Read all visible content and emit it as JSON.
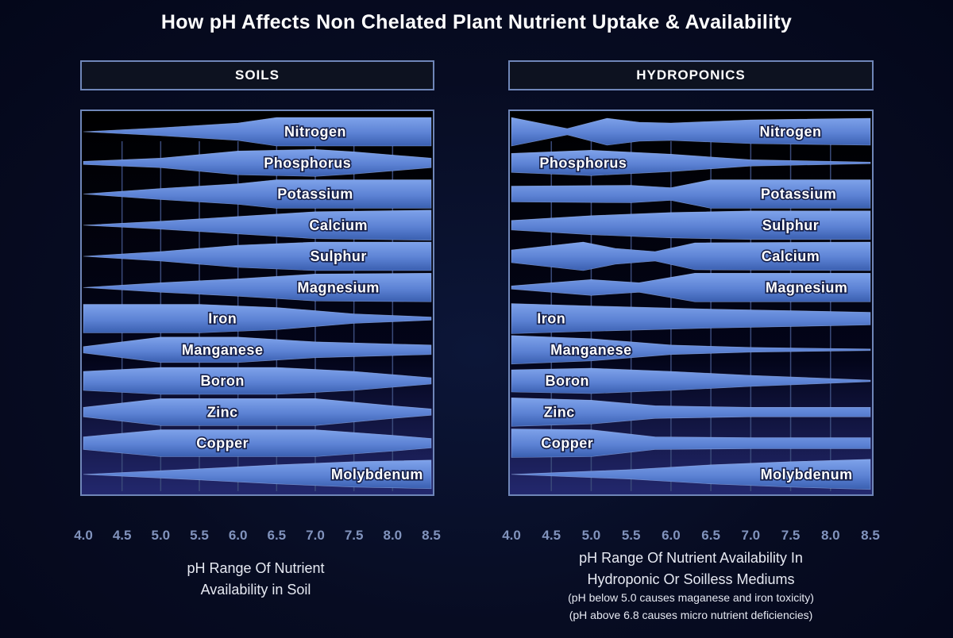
{
  "title": "How pH Affects Non Chelated Plant Nutrient Uptake & Availability",
  "colors": {
    "band_light": "#7ea2ea",
    "band_dark": "#3a5fb0",
    "frame": "#6f86b8",
    "tick_label": "#8193bd",
    "label_fill": "#ffffff",
    "label_stroke": "#16204a"
  },
  "soils": {
    "header": "SOILS",
    "caption_line1": "pH Range Of Nutrient",
    "caption_line2": "Availability  in Soil"
  },
  "hydroponics": {
    "header": "HYDROPONICS",
    "caption_line1": "pH Range Of Nutrient Availability In",
    "caption_line2": "Hydroponic Or Soilless Mediums",
    "note1": "(pH below 5.0 causes maganese and iron toxicity)",
    "note2": "(pH above 6.8 causes micro nutrient deficiencies)"
  },
  "chart_data": [
    {
      "type": "area",
      "panel": "SOILS",
      "x_axis_ticks": [
        "4.0",
        "4.5",
        "5.0",
        "5.5",
        "6.0",
        "6.5",
        "7.0",
        "7.5",
        "8.0",
        "8.5"
      ],
      "xlim": [
        4.0,
        8.5
      ],
      "value_unit": "relative availability (band thickness, 0-1)",
      "series": [
        {
          "name": "Nitrogen",
          "label_at": 7.0,
          "points": [
            [
              4.0,
              0.0
            ],
            [
              5.0,
              0.25
            ],
            [
              6.0,
              0.55
            ],
            [
              6.5,
              0.9
            ],
            [
              8.5,
              0.9
            ]
          ]
        },
        {
          "name": "Phosphorus",
          "label_at": 6.9,
          "points": [
            [
              4.0,
              0.1
            ],
            [
              5.0,
              0.3
            ],
            [
              6.0,
              0.75
            ],
            [
              7.0,
              0.85
            ],
            [
              7.5,
              0.7
            ],
            [
              8.5,
              0.3
            ]
          ]
        },
        {
          "name": "Potassium",
          "label_at": 7.0,
          "points": [
            [
              4.0,
              0.0
            ],
            [
              5.0,
              0.35
            ],
            [
              6.0,
              0.65
            ],
            [
              6.5,
              0.9
            ],
            [
              8.5,
              0.9
            ]
          ]
        },
        {
          "name": "Calcium",
          "label_at": 7.3,
          "points": [
            [
              4.0,
              0.0
            ],
            [
              5.0,
              0.25
            ],
            [
              6.0,
              0.55
            ],
            [
              7.0,
              0.85
            ],
            [
              8.5,
              0.95
            ]
          ]
        },
        {
          "name": "Sulphur",
          "label_at": 7.3,
          "points": [
            [
              4.0,
              0.0
            ],
            [
              5.0,
              0.3
            ],
            [
              6.0,
              0.7
            ],
            [
              7.0,
              0.9
            ],
            [
              8.5,
              0.9
            ]
          ]
        },
        {
          "name": "Magnesium",
          "label_at": 7.3,
          "points": [
            [
              4.0,
              0.0
            ],
            [
              5.0,
              0.3
            ],
            [
              6.0,
              0.55
            ],
            [
              7.0,
              0.85
            ],
            [
              8.5,
              0.9
            ]
          ]
        },
        {
          "name": "Iron",
          "label_at": 5.8,
          "points": [
            [
              4.0,
              0.9
            ],
            [
              5.5,
              0.9
            ],
            [
              6.5,
              0.7
            ],
            [
              7.5,
              0.3
            ],
            [
              8.5,
              0.1
            ]
          ]
        },
        {
          "name": "Manganese",
          "label_at": 5.8,
          "points": [
            [
              4.0,
              0.2
            ],
            [
              5.0,
              0.8
            ],
            [
              6.0,
              0.8
            ],
            [
              7.0,
              0.5
            ],
            [
              8.5,
              0.3
            ]
          ]
        },
        {
          "name": "Boron",
          "label_at": 5.8,
          "points": [
            [
              4.0,
              0.6
            ],
            [
              5.0,
              0.85
            ],
            [
              6.5,
              0.85
            ],
            [
              7.5,
              0.6
            ],
            [
              8.0,
              0.4
            ],
            [
              8.5,
              0.2
            ]
          ]
        },
        {
          "name": "Zinc",
          "label_at": 5.8,
          "points": [
            [
              4.0,
              0.3
            ],
            [
              5.0,
              0.85
            ],
            [
              7.0,
              0.85
            ],
            [
              8.0,
              0.4
            ],
            [
              8.5,
              0.2
            ]
          ]
        },
        {
          "name": "Copper",
          "label_at": 5.8,
          "points": [
            [
              4.0,
              0.4
            ],
            [
              5.0,
              0.85
            ],
            [
              7.0,
              0.85
            ],
            [
              8.0,
              0.5
            ],
            [
              8.5,
              0.3
            ]
          ]
        },
        {
          "name": "Molybdenum",
          "label_at": 7.8,
          "points": [
            [
              4.0,
              0.0
            ],
            [
              5.5,
              0.35
            ],
            [
              6.5,
              0.6
            ],
            [
              7.5,
              0.8
            ],
            [
              8.5,
              0.9
            ]
          ]
        }
      ]
    },
    {
      "type": "area",
      "panel": "HYDROPONICS",
      "x_axis_ticks": [
        "4.0",
        "4.5",
        "5.0",
        "5.5",
        "6.0",
        "6.5",
        "7.0",
        "7.5",
        "8.0",
        "8.5"
      ],
      "xlim": [
        4.0,
        8.5
      ],
      "value_unit": "relative availability (band thickness, 0-1)",
      "series": [
        {
          "name": "Nitrogen",
          "label_at": 7.5,
          "points": [
            [
              4.0,
              0.9
            ],
            [
              4.7,
              0.2
            ],
            [
              5.2,
              0.85
            ],
            [
              5.6,
              0.6
            ],
            [
              6.0,
              0.55
            ],
            [
              7.0,
              0.75
            ],
            [
              8.5,
              0.85
            ]
          ]
        },
        {
          "name": "Phosphorus",
          "label_at": 4.9,
          "points": [
            [
              4.0,
              0.6
            ],
            [
              5.0,
              0.8
            ],
            [
              6.0,
              0.55
            ],
            [
              7.0,
              0.2
            ],
            [
              8.5,
              0.05
            ]
          ]
        },
        {
          "name": "Potassium",
          "label_at": 7.6,
          "points": [
            [
              4.0,
              0.5
            ],
            [
              5.5,
              0.55
            ],
            [
              6.0,
              0.4
            ],
            [
              6.5,
              0.9
            ],
            [
              8.5,
              0.9
            ]
          ]
        },
        {
          "name": "Sulphur",
          "label_at": 7.5,
          "points": [
            [
              4.0,
              0.3
            ],
            [
              5.0,
              0.6
            ],
            [
              6.0,
              0.8
            ],
            [
              7.0,
              0.9
            ],
            [
              8.5,
              0.9
            ]
          ]
        },
        {
          "name": "Calcium",
          "label_at": 7.5,
          "points": [
            [
              4.0,
              0.4
            ],
            [
              4.9,
              0.9
            ],
            [
              5.3,
              0.5
            ],
            [
              5.8,
              0.3
            ],
            [
              6.3,
              0.85
            ],
            [
              8.5,
              0.9
            ]
          ]
        },
        {
          "name": "Magnesium",
          "label_at": 7.7,
          "points": [
            [
              4.0,
              0.1
            ],
            [
              5.0,
              0.5
            ],
            [
              5.6,
              0.3
            ],
            [
              6.3,
              0.9
            ],
            [
              8.5,
              0.9
            ]
          ]
        },
        {
          "name": "Iron",
          "label_at": 4.5,
          "points": [
            [
              4.0,
              0.95
            ],
            [
              5.0,
              0.8
            ],
            [
              6.5,
              0.6
            ],
            [
              8.5,
              0.4
            ]
          ]
        },
        {
          "name": "Manganese",
          "label_at": 5.0,
          "points": [
            [
              4.0,
              0.9
            ],
            [
              5.0,
              0.7
            ],
            [
              6.0,
              0.3
            ],
            [
              7.0,
              0.15
            ],
            [
              8.5,
              0.05
            ]
          ]
        },
        {
          "name": "Boron",
          "label_at": 4.7,
          "points": [
            [
              4.0,
              0.7
            ],
            [
              5.0,
              0.8
            ],
            [
              6.0,
              0.6
            ],
            [
              7.0,
              0.35
            ],
            [
              8.5,
              0.05
            ]
          ]
        },
        {
          "name": "Zinc",
          "label_at": 4.6,
          "points": [
            [
              4.0,
              0.9
            ],
            [
              5.0,
              0.75
            ],
            [
              5.8,
              0.4
            ],
            [
              7.0,
              0.3
            ],
            [
              8.5,
              0.3
            ]
          ]
        },
        {
          "name": "Copper",
          "label_at": 4.7,
          "points": [
            [
              4.0,
              0.9
            ],
            [
              5.0,
              0.85
            ],
            [
              5.8,
              0.4
            ],
            [
              7.0,
              0.35
            ],
            [
              8.5,
              0.35
            ]
          ]
        },
        {
          "name": "Molybdenum",
          "label_at": 7.7,
          "points": [
            [
              4.0,
              0.0
            ],
            [
              5.5,
              0.3
            ],
            [
              6.5,
              0.6
            ],
            [
              7.5,
              0.8
            ],
            [
              8.5,
              0.95
            ]
          ]
        }
      ]
    }
  ]
}
